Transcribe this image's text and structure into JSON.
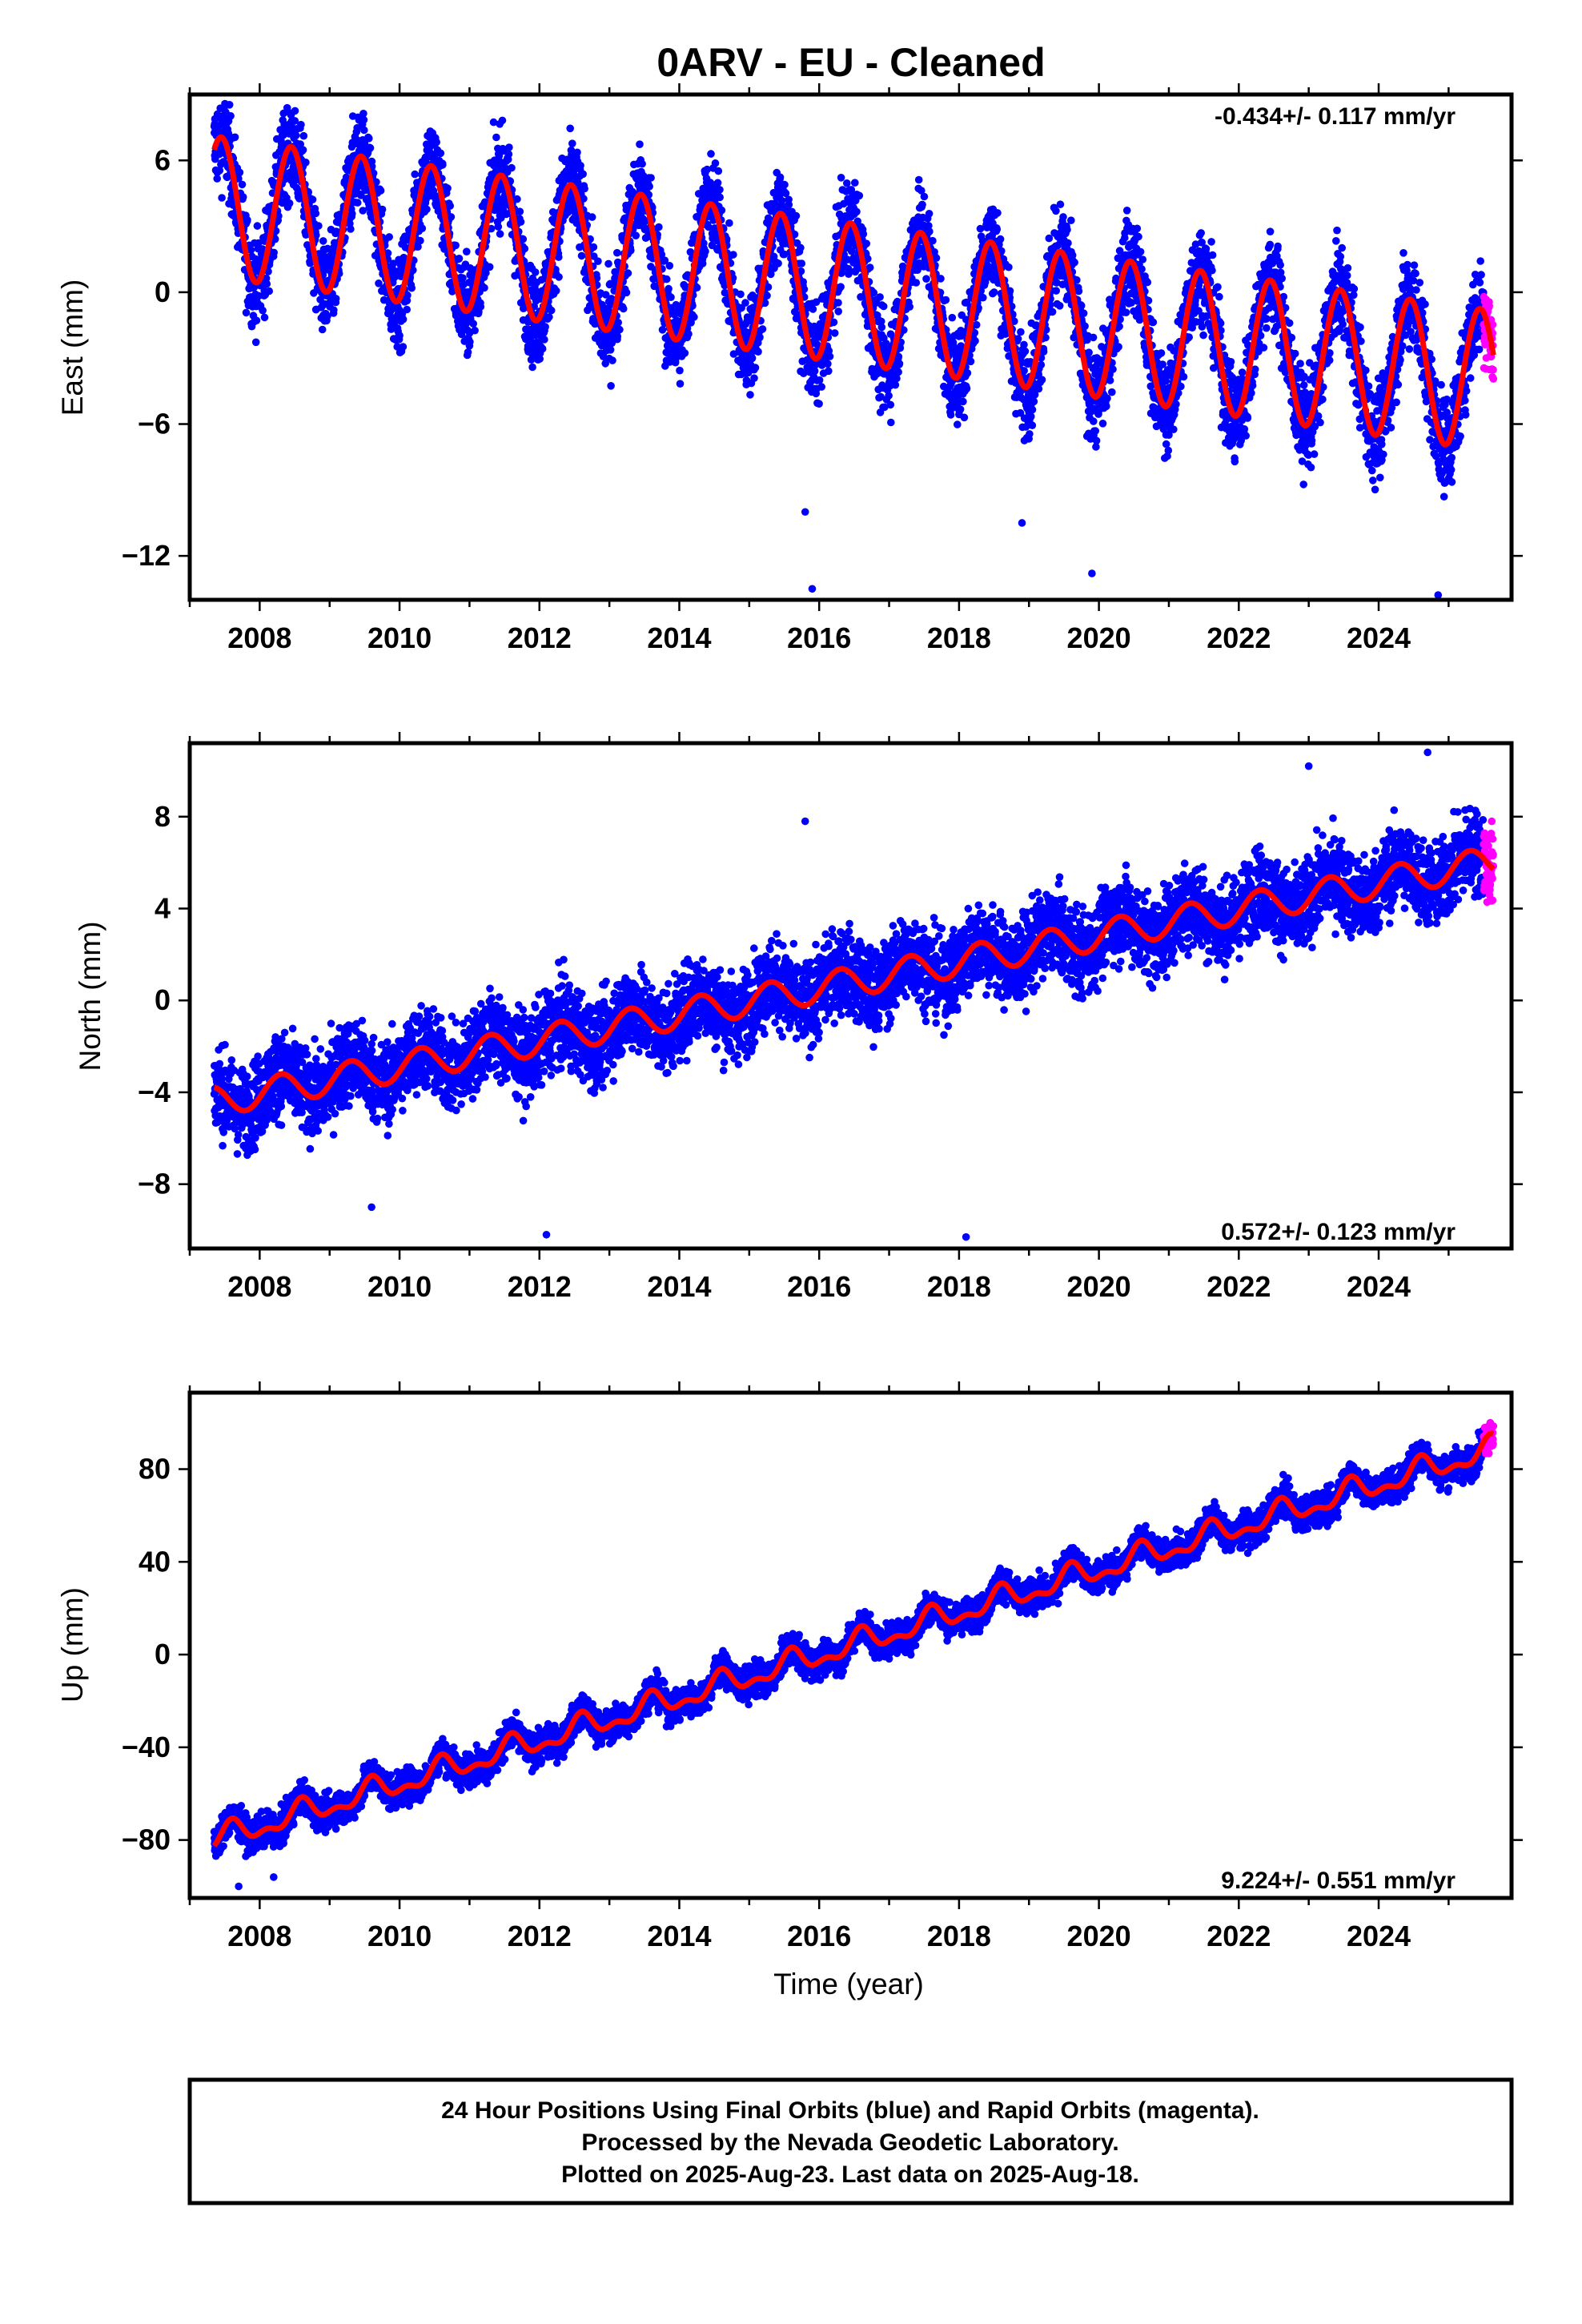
{
  "title": "0ARV  - EU - Cleaned",
  "xlabel": "Time (year)",
  "footer": {
    "line1": "24 Hour Positions Using Final Orbits (blue) and Rapid Orbits (magenta).",
    "line2": "Processed by the Nevada Geodetic Laboratory.",
    "line3": "Plotted on 2025-Aug-23. Last data on 2025-Aug-18."
  },
  "colors": {
    "final": "#0000ff",
    "rapid": "#ff00ff",
    "model": "#ff0000"
  },
  "chart_data": [
    {
      "type": "scatter",
      "panel": "east",
      "ylabel": "East (mm)",
      "rate_label": "-0.434+/- 0.117 mm/yr",
      "xlim": [
        2007.0,
        2025.9
      ],
      "ylim": [
        -14.0,
        9.0
      ],
      "xticks": [
        2008,
        2010,
        2012,
        2014,
        2016,
        2018,
        2020,
        2022,
        2024
      ],
      "yticks": [
        6,
        0,
        -6,
        -12
      ],
      "grid": false,
      "model": {
        "rate": -0.434,
        "intercept": 3.9,
        "amplitude": 3.2,
        "phase": 0.45,
        "semi_amplitude": 0.0
      },
      "final_range": [
        2007.35,
        2025.5
      ],
      "rapid_range": [
        2025.5,
        2025.64
      ],
      "outliers": [
        [
          2015.9,
          -13.5
        ],
        [
          2024.85,
          -17.5
        ],
        [
          2019.9,
          -12.8
        ],
        [
          2015.8,
          -10.0
        ],
        [
          2018.9,
          -10.5
        ]
      ],
      "scatter": 1.5
    },
    {
      "type": "scatter",
      "panel": "north",
      "ylabel": "North (mm)",
      "rate_label": "0.572+/- 0.123 mm/yr",
      "xlim": [
        2007.0,
        2025.9
      ],
      "ylim": [
        -10.8,
        11.2
      ],
      "xticks": [
        2008,
        2010,
        2012,
        2014,
        2016,
        2018,
        2020,
        2022,
        2024
      ],
      "yticks": [
        8,
        4,
        0,
        -4,
        -8
      ],
      "grid": false,
      "model": {
        "rate": 0.572,
        "intercept": -4.4,
        "amplitude": 0.65,
        "phase": 0.3,
        "semi_amplitude": 0.0
      },
      "final_range": [
        2007.35,
        2025.5
      ],
      "rapid_range": [
        2025.5,
        2025.64
      ],
      "outliers": [
        [
          2018.1,
          -10.3
        ],
        [
          2012.1,
          -10.2
        ],
        [
          2009.6,
          -9.0
        ],
        [
          2015.8,
          7.8
        ],
        [
          2023.0,
          10.2
        ],
        [
          2024.7,
          10.8
        ]
      ],
      "scatter": 1.3
    },
    {
      "type": "scatter",
      "panel": "up",
      "ylabel": "Up (mm)",
      "rate_label": "9.224+/- 0.551 mm/yr",
      "xlim": [
        2007.0,
        2025.9
      ],
      "ylim": [
        -105.0,
        113.0
      ],
      "xticks": [
        2008,
        2010,
        2012,
        2014,
        2016,
        2018,
        2020,
        2022,
        2024
      ],
      "yticks": [
        80,
        40,
        0,
        -40,
        -80
      ],
      "grid": false,
      "model": {
        "rate": 9.224,
        "intercept": -80.0,
        "amplitude": 4.5,
        "phase": 0.6,
        "semi_amplitude": 2.5
      },
      "final_range": [
        2007.35,
        2025.5
      ],
      "rapid_range": [
        2025.5,
        2025.64
      ],
      "outliers": [
        [
          2007.7,
          -100.0
        ],
        [
          2008.2,
          -96.0
        ]
      ],
      "scatter": 5.0
    }
  ]
}
